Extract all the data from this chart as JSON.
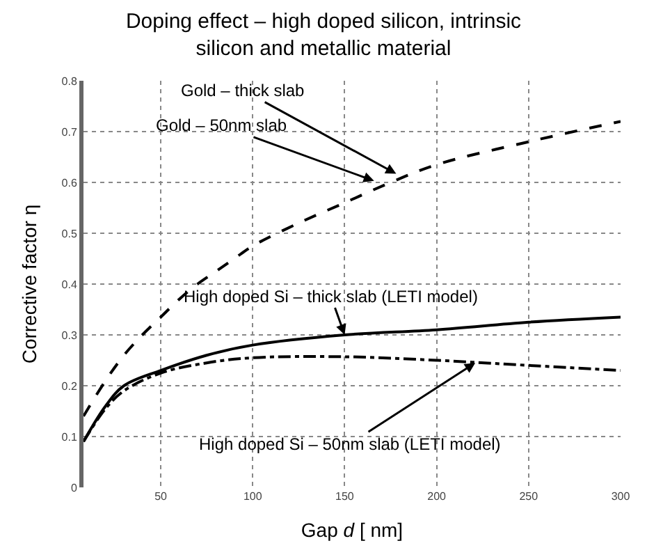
{
  "chart_data": {
    "type": "line",
    "title": "Doping effect – high doped silicon, intrinsic silicon and metallic material",
    "xlabel": "Gap d [ nm]",
    "ylabel": "Corrective factor η",
    "xlim": [
      8,
      300
    ],
    "xticks": [
      50,
      100,
      150,
      200,
      250,
      300
    ],
    "ylim": [
      0,
      0.8
    ],
    "yticks": [
      0,
      0.1,
      0.2,
      0.3,
      0.4,
      0.5,
      0.6,
      0.7,
      0.8
    ],
    "grid": true,
    "series": [
      {
        "color": "#000000",
        "line_style": "dashed",
        "x": [
          8,
          20,
          30,
          40,
          50,
          60,
          70,
          80,
          90,
          100,
          125,
          150,
          175,
          200,
          250,
          300
        ],
        "values": [
          0.14,
          0.21,
          0.26,
          0.3,
          0.335,
          0.37,
          0.4,
          0.425,
          0.45,
          0.475,
          0.52,
          0.56,
          0.6,
          0.635,
          0.68,
          0.72
        ]
      },
      {
        "color": "#000000",
        "line_style": "solid",
        "x": [
          8,
          20,
          30,
          50,
          75,
          100,
          150,
          200,
          250,
          300
        ],
        "values": [
          0.09,
          0.16,
          0.2,
          0.23,
          0.26,
          0.28,
          0.3,
          0.31,
          0.325,
          0.335
        ]
      },
      {
        "color": "#000000",
        "line_style": "dashdot",
        "x": [
          8,
          20,
          30,
          50,
          75,
          100,
          150,
          200,
          250,
          300
        ],
        "values": [
          0.09,
          0.155,
          0.19,
          0.225,
          0.245,
          0.255,
          0.257,
          0.25,
          0.24,
          0.23
        ]
      }
    ],
    "annotations": [
      {
        "text": "Gold – thick slab",
        "x": 178,
        "y": 0.617
      },
      {
        "text": "Gold – 50nm slab",
        "x": 166,
        "y": 0.603
      },
      {
        "text": "High doped Si – thick slab (LETI model)",
        "x": 150,
        "y": 0.3
      },
      {
        "text": "High doped Si – 50nm slab (LETI model)",
        "x": 221,
        "y": 0.245
      }
    ]
  }
}
